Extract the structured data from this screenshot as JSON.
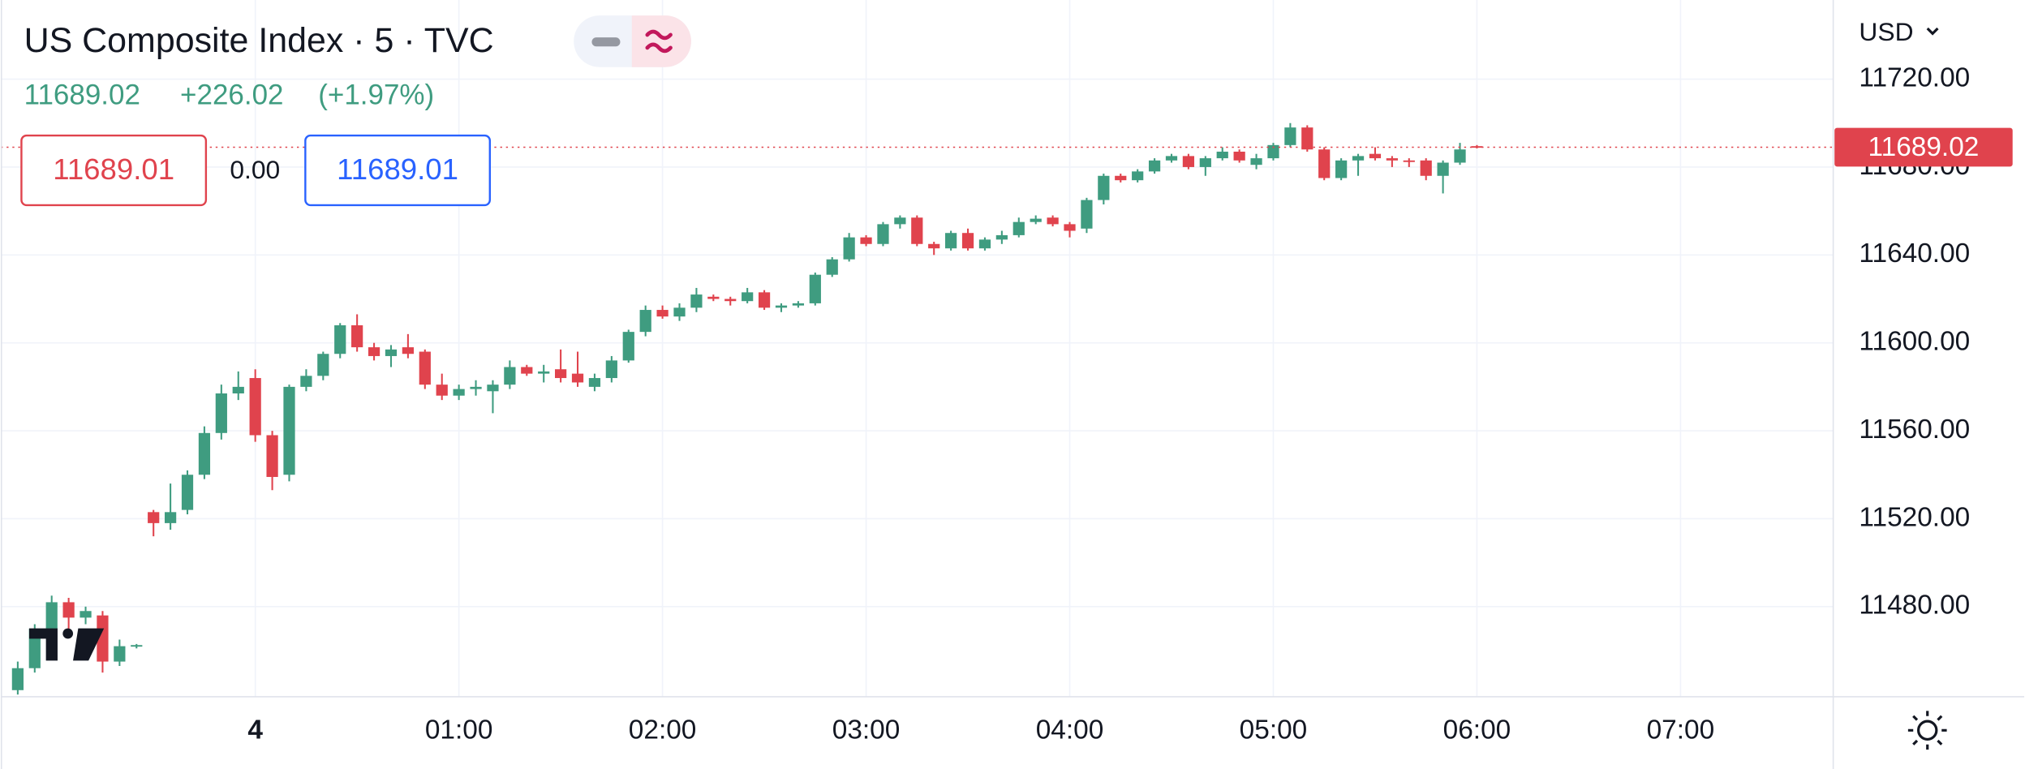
{
  "header": {
    "title": "US Composite Index · 5 · TVC",
    "price": "11689.02",
    "change": "+226.02",
    "change_percent": "(+1.97%)",
    "sell": "11689.01",
    "spread": "0.00",
    "buy": "11689.01",
    "currency": "USD"
  },
  "chart_data": {
    "type": "candlestick",
    "title": "US Composite Index · 5 · TVC",
    "up_color": "#3f9c80",
    "down_color": "#e0434d",
    "grid": true,
    "last_price": 11689.02,
    "x": [
      -70,
      -65,
      -60,
      -55,
      -50,
      -45,
      -40,
      -35,
      -30,
      -25,
      -20,
      -15,
      -10,
      -5,
      0,
      5,
      10,
      15,
      20,
      25,
      30,
      35,
      40,
      45,
      50,
      55,
      60,
      65,
      70,
      75,
      80,
      85,
      90,
      95,
      100,
      105,
      110,
      115,
      120,
      125,
      130,
      135,
      140,
      145,
      150,
      155,
      160,
      165,
      170,
      175,
      180,
      185,
      190,
      195,
      200,
      205,
      210,
      215,
      220,
      225,
      230,
      235,
      240,
      245,
      250,
      255,
      260,
      265,
      270,
      275,
      280,
      285,
      290,
      295,
      300,
      305,
      310,
      315,
      320,
      325,
      330,
      335,
      340,
      345,
      350,
      355,
      360
    ],
    "open": [
      11442,
      11452,
      11470,
      11482,
      11475,
      11476,
      11455,
      11462,
      11523,
      11518,
      11524,
      11540,
      11559,
      11577,
      11584,
      11558,
      11540,
      11580,
      11585,
      11595,
      11608,
      11598,
      11594,
      11598,
      11596,
      11581,
      11576,
      11579,
      11578,
      11581,
      11589,
      11586,
      11588,
      11586,
      11580,
      11584,
      11592,
      11605,
      11615,
      11612,
      11616,
      11621,
      11620,
      11619,
      11623,
      11616,
      11617,
      11618,
      11631,
      11638,
      11648,
      11645,
      11654,
      11657,
      11645,
      11643,
      11650,
      11643,
      11647,
      11649,
      11655,
      11657,
      11654,
      11652,
      11665,
      11676,
      11674,
      11678,
      11683,
      11685,
      11680,
      11684,
      11687,
      11681,
      11684,
      11690,
      11698,
      11688,
      11675,
      11683,
      11686,
      11684,
      11683,
      11683,
      11676,
      11682,
      11689.5
    ],
    "high": [
      11455,
      11472,
      11485,
      11484,
      11480,
      11478,
      11465,
      11463,
      11524,
      11536,
      11542,
      11562,
      11581,
      11587,
      11588,
      11560,
      11581,
      11588,
      11596,
      11609,
      11613,
      11600,
      11599,
      11604,
      11597,
      11586,
      11581,
      11583,
      11583,
      11592,
      11590,
      11590,
      11597,
      11596,
      11586,
      11594,
      11606,
      11617,
      11617,
      11618,
      11625,
      11622,
      11621,
      11625,
      11624,
      11618,
      11619,
      11632,
      11639,
      11650,
      11649,
      11655,
      11658,
      11658,
      11646,
      11651,
      11652,
      11648,
      11651,
      11657,
      11658,
      11658,
      11655,
      11666,
      11677,
      11677,
      11679,
      11684,
      11686,
      11686,
      11685,
      11689,
      11688,
      11686,
      11691,
      11700,
      11699,
      11689,
      11684,
      11686,
      11689,
      11685,
      11684,
      11684,
      11683,
      11691,
      11690
    ],
    "low": [
      11440,
      11450,
      11468,
      11470,
      11472,
      11450,
      11453,
      11461,
      11512,
      11515,
      11522,
      11538,
      11556,
      11574,
      11555,
      11533,
      11537,
      11578,
      11583,
      11593,
      11596,
      11592,
      11589,
      11593,
      11579,
      11574,
      11574,
      11576,
      11568,
      11579,
      11585,
      11582,
      11582,
      11580,
      11578,
      11582,
      11591,
      11603,
      11611,
      11610,
      11614,
      11619,
      11617,
      11618,
      11615,
      11614,
      11616,
      11617,
      11630,
      11637,
      11644,
      11644,
      11652,
      11644,
      11640,
      11642,
      11642,
      11642,
      11645,
      11648,
      11654,
      11653,
      11648,
      11650,
      11663,
      11673,
      11673,
      11677,
      11682,
      11679,
      11676,
      11683,
      11682,
      11679,
      11683,
      11689,
      11687,
      11674,
      11674,
      11676,
      11683,
      11680,
      11680,
      11674,
      11668,
      11681,
      11688.5
    ],
    "close": [
      11452,
      11470,
      11482,
      11475,
      11478,
      11455,
      11462,
      11462.5,
      11518,
      11523,
      11540,
      11559,
      11577,
      11580,
      11558,
      11539,
      11580,
      11585,
      11595,
      11608,
      11598,
      11594,
      11597,
      11595,
      11581,
      11576,
      11579,
      11580,
      11581,
      11589,
      11586,
      11587,
      11584,
      11582,
      11584,
      11592,
      11605,
      11615,
      11612,
      11616,
      11622,
      11620,
      11619,
      11623,
      11616,
      11617,
      11618,
      11631,
      11638,
      11648,
      11645,
      11654,
      11657,
      11645,
      11643,
      11650,
      11643,
      11647,
      11649,
      11655,
      11656.5,
      11654,
      11651,
      11665,
      11676,
      11674,
      11678,
      11683,
      11685,
      11680,
      11684,
      11687,
      11683,
      11684,
      11690,
      11698,
      11688,
      11675,
      11683,
      11685,
      11684,
      11683,
      11682.5,
      11676,
      11682,
      11688,
      11689.02
    ],
    "xlim": [
      -75,
      465
    ],
    "ylim": [
      11439,
      11756
    ],
    "xticks": [
      {
        "value": 0,
        "label": "4"
      },
      {
        "value": 60,
        "label": "01:00"
      },
      {
        "value": 120,
        "label": "02:00"
      },
      {
        "value": 180,
        "label": "03:00"
      },
      {
        "value": 240,
        "label": "04:00"
      },
      {
        "value": 300,
        "label": "05:00"
      },
      {
        "value": 360,
        "label": "06:00"
      },
      {
        "value": 420,
        "label": "07:00"
      }
    ],
    "yticks": [
      {
        "value": 11480,
        "label": "11480.00"
      },
      {
        "value": 11520,
        "label": "11520.00"
      },
      {
        "value": 11560,
        "label": "11560.00"
      },
      {
        "value": 11600,
        "label": "11600.00"
      },
      {
        "value": 11640,
        "label": "11640.00"
      },
      {
        "value": 11680,
        "label": "11680.00"
      },
      {
        "value": 11720,
        "label": "11720.00"
      }
    ]
  }
}
